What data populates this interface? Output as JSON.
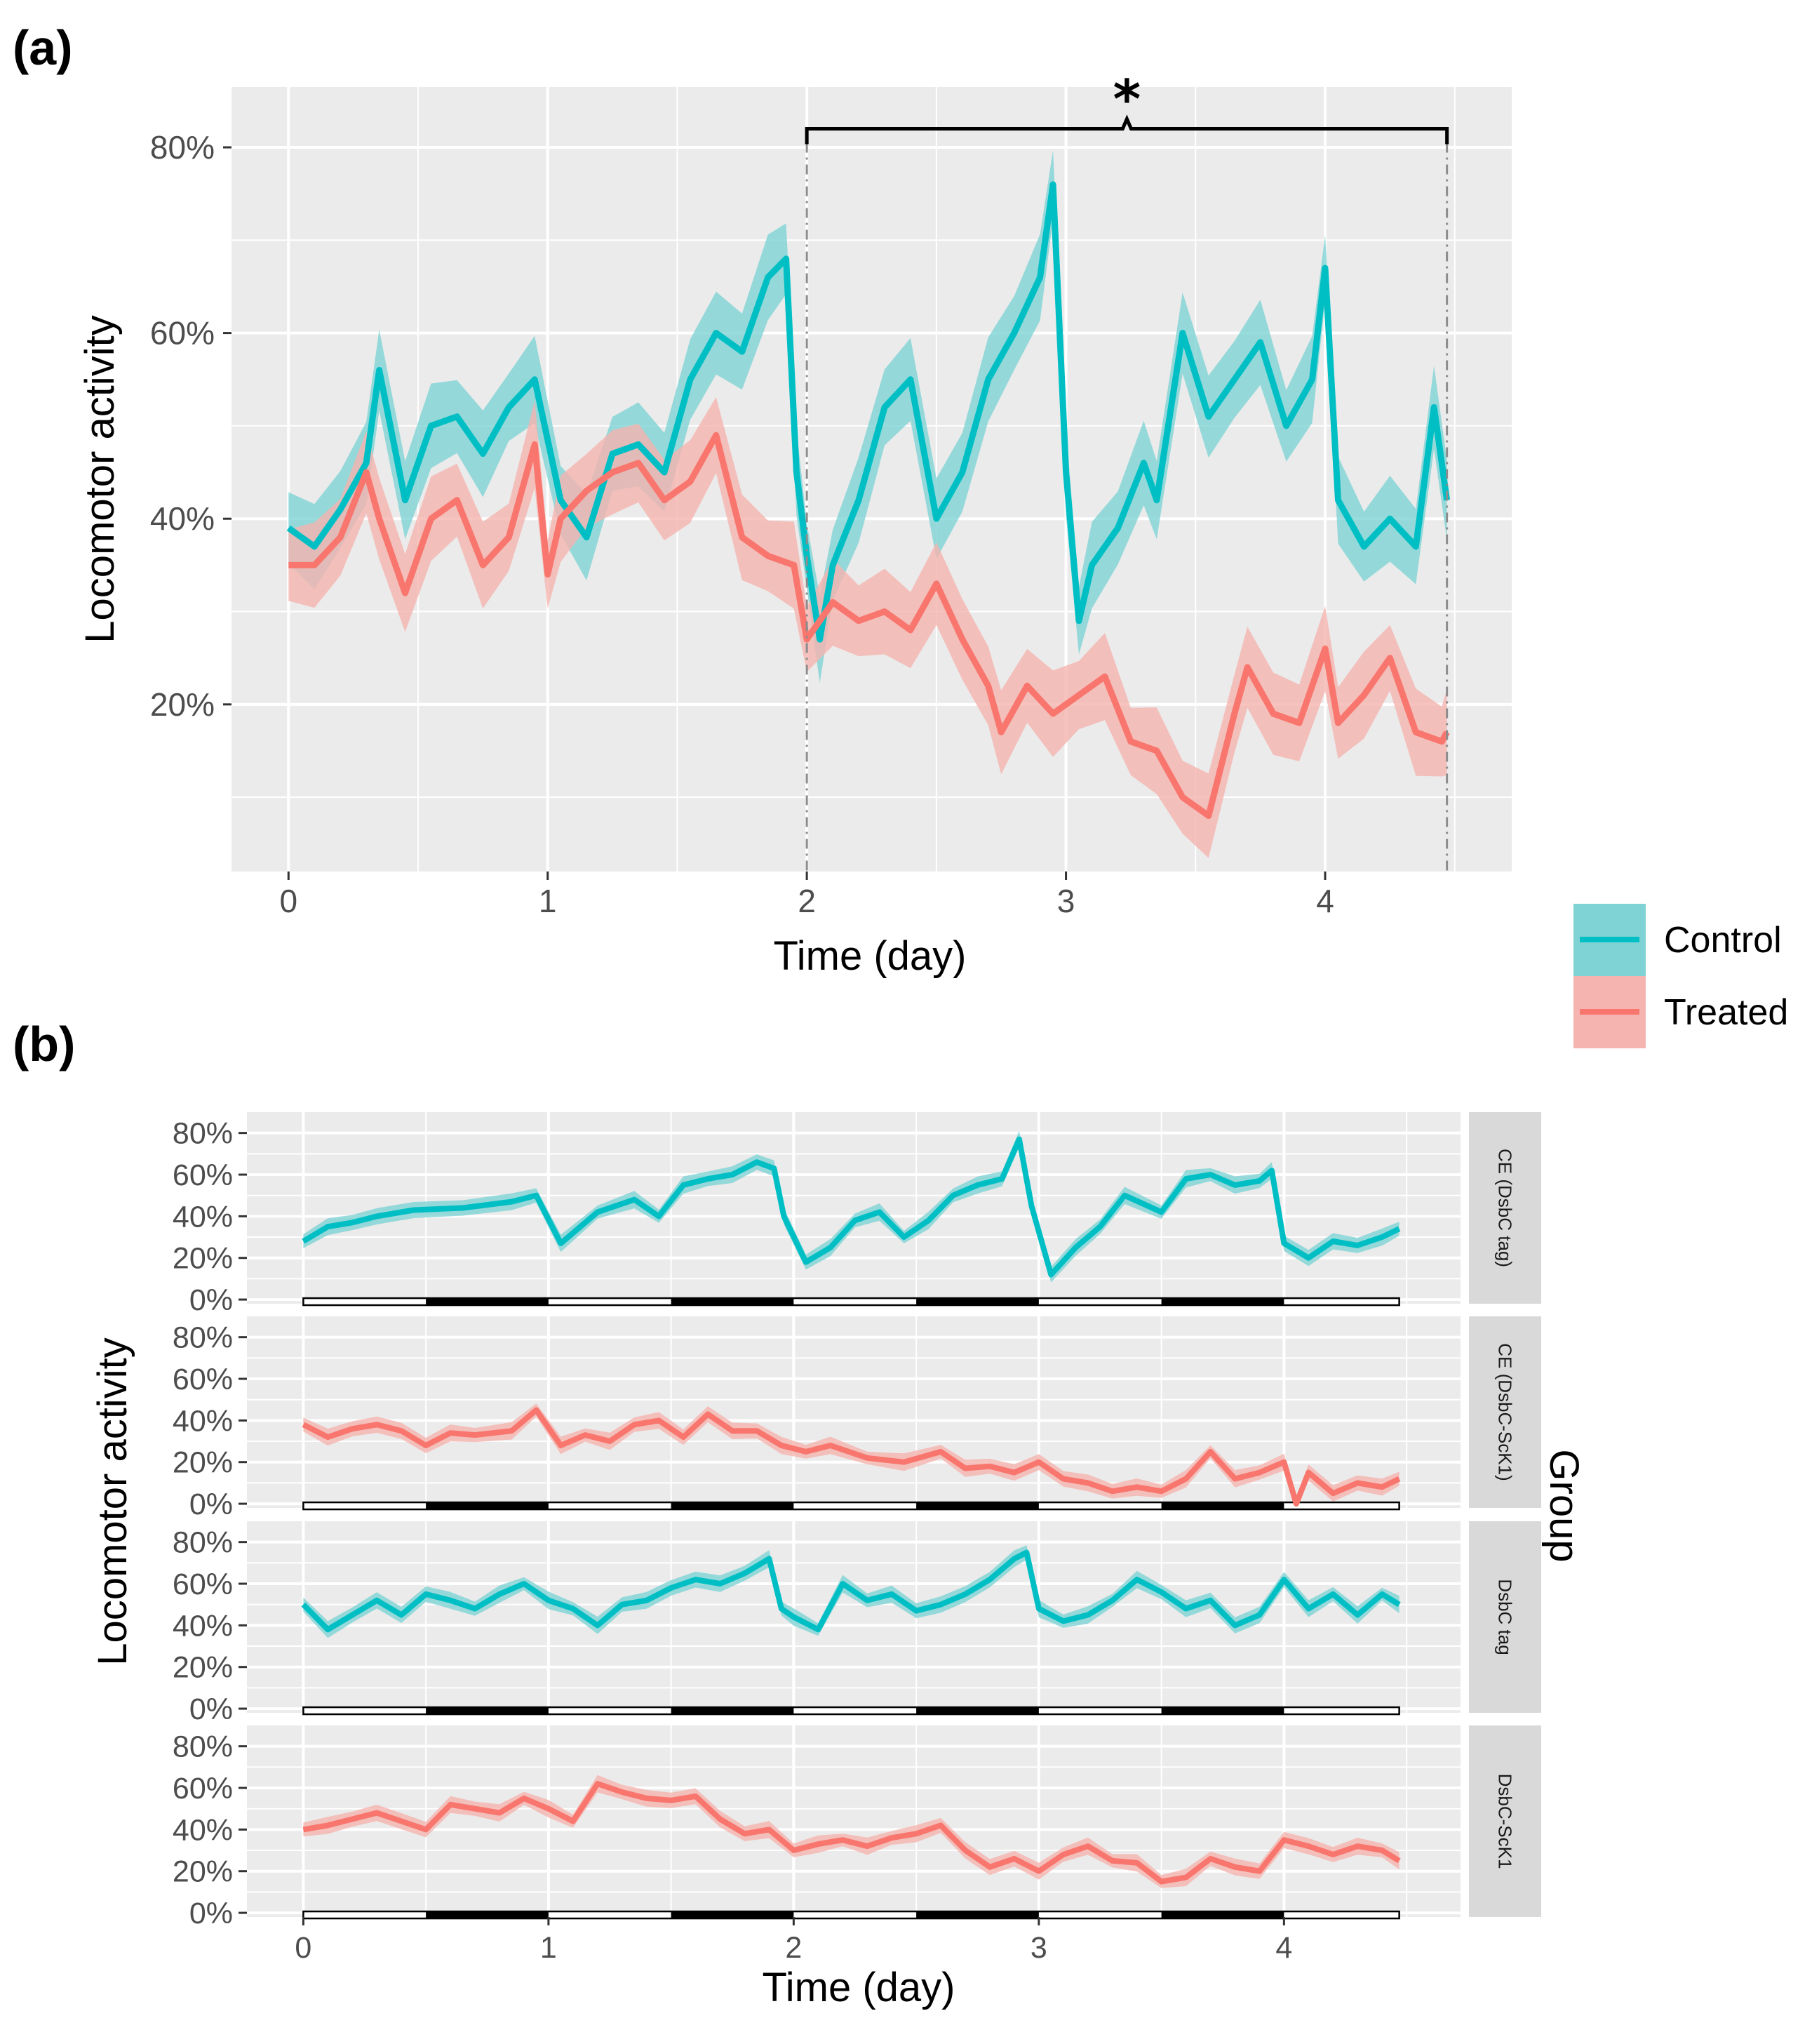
{
  "panel_a": {
    "tag": "(a)",
    "ylabel": "Locomotor activity",
    "xlabel": "Time (day)",
    "significance": "*",
    "yticks": [
      "20%",
      "40%",
      "60%",
      "80%"
    ],
    "xticks": [
      "0",
      "1",
      "2",
      "3",
      "4"
    ]
  },
  "panel_b": {
    "tag": "(b)",
    "ylabel": "Locomotor activity",
    "xlabel": "Time (day)",
    "group_label": "Group",
    "yticks": [
      "0%",
      "20%",
      "40%",
      "60%",
      "80%"
    ],
    "xticks": [
      "0",
      "1",
      "2",
      "3",
      "4"
    ],
    "facets": [
      "CE (DsbC tag)",
      "CE (DsbC-ScK1)",
      "DsbC tag",
      "DsbC-ScK1"
    ]
  },
  "legend": {
    "items": [
      {
        "label": "Control",
        "color": "#00bfc4",
        "fill": "#7fd3d5"
      },
      {
        "label": "Treated",
        "color": "#f8766d",
        "fill": "#f5b4af"
      }
    ]
  },
  "chart_data": [
    {
      "type": "line",
      "panel": "a",
      "title": "",
      "xlabel": "Time (day)",
      "ylabel": "Locomotor activity",
      "xlim": [
        -0.22,
        4.72
      ],
      "ylim": [
        0.02,
        0.865
      ],
      "xticks": [
        0,
        1,
        2,
        3,
        4
      ],
      "yticks": [
        0.2,
        0.4,
        0.6,
        0.8
      ],
      "annotation": {
        "text": "*",
        "x_from": 2,
        "x_to": 4.47,
        "y": 0.82
      },
      "series": [
        {
          "name": "Control",
          "x": [
            0,
            0.1,
            0.2,
            0.3,
            0.35,
            0.45,
            0.55,
            0.65,
            0.75,
            0.85,
            0.95,
            1.05,
            1.15,
            1.25,
            1.35,
            1.45,
            1.55,
            1.65,
            1.75,
            1.85,
            1.92,
            1.96,
            2.0,
            2.05,
            2.1,
            2.2,
            2.3,
            2.4,
            2.5,
            2.6,
            2.7,
            2.8,
            2.9,
            2.95,
            3.0,
            3.05,
            3.1,
            3.2,
            3.3,
            3.35,
            3.45,
            3.55,
            3.65,
            3.75,
            3.85,
            3.95,
            4.0,
            4.05,
            4.15,
            4.25,
            4.35,
            4.42,
            4.47
          ],
          "values": [
            0.39,
            0.37,
            0.41,
            0.46,
            0.56,
            0.42,
            0.5,
            0.51,
            0.47,
            0.52,
            0.55,
            0.42,
            0.38,
            0.47,
            0.48,
            0.45,
            0.55,
            0.6,
            0.58,
            0.66,
            0.68,
            0.45,
            0.36,
            0.27,
            0.35,
            0.42,
            0.52,
            0.55,
            0.4,
            0.45,
            0.55,
            0.6,
            0.66,
            0.76,
            0.45,
            0.29,
            0.35,
            0.39,
            0.46,
            0.42,
            0.6,
            0.51,
            0.55,
            0.59,
            0.5,
            0.55,
            0.67,
            0.42,
            0.37,
            0.4,
            0.37,
            0.52,
            0.42
          ]
        },
        {
          "name": "Treated",
          "x": [
            0,
            0.1,
            0.2,
            0.3,
            0.35,
            0.45,
            0.55,
            0.65,
            0.75,
            0.85,
            0.95,
            1.0,
            1.05,
            1.15,
            1.25,
            1.35,
            1.45,
            1.55,
            1.65,
            1.75,
            1.85,
            1.95,
            2.0,
            2.1,
            2.2,
            2.3,
            2.4,
            2.5,
            2.6,
            2.7,
            2.75,
            2.85,
            2.95,
            3.05,
            3.15,
            3.25,
            3.35,
            3.45,
            3.55,
            3.65,
            3.7,
            3.8,
            3.9,
            4.0,
            4.05,
            4.15,
            4.25,
            4.35,
            4.45,
            4.47
          ],
          "values": [
            0.35,
            0.35,
            0.38,
            0.45,
            0.4,
            0.32,
            0.4,
            0.42,
            0.35,
            0.38,
            0.48,
            0.34,
            0.4,
            0.43,
            0.45,
            0.46,
            0.42,
            0.44,
            0.49,
            0.38,
            0.36,
            0.35,
            0.27,
            0.31,
            0.29,
            0.3,
            0.28,
            0.33,
            0.27,
            0.22,
            0.17,
            0.22,
            0.19,
            0.21,
            0.23,
            0.16,
            0.15,
            0.1,
            0.08,
            0.19,
            0.24,
            0.19,
            0.18,
            0.26,
            0.18,
            0.21,
            0.25,
            0.17,
            0.16,
            0.17
          ]
        }
      ]
    },
    {
      "type": "line",
      "panel": "b",
      "xlabel": "Time (day)",
      "ylabel": "Locomotor activity",
      "xlim": [
        -0.23,
        4.72
      ],
      "ylim": [
        -0.02,
        0.9
      ],
      "xticks": [
        0,
        1,
        2,
        3,
        4
      ],
      "yticks": [
        0,
        0.2,
        0.4,
        0.6,
        0.8
      ],
      "facets": [
        {
          "label": "CE (DsbC tag)",
          "series": "Control",
          "x": [
            0,
            0.1,
            0.2,
            0.3,
            0.45,
            0.65,
            0.85,
            0.95,
            1.05,
            1.2,
            1.35,
            1.45,
            1.55,
            1.65,
            1.75,
            1.85,
            1.92,
            1.96,
            2.05,
            2.15,
            2.25,
            2.35,
            2.45,
            2.55,
            2.65,
            2.75,
            2.85,
            2.92,
            2.97,
            3.05,
            3.15,
            3.25,
            3.35,
            3.5,
            3.6,
            3.7,
            3.8,
            3.9,
            3.95,
            4.0,
            4.1,
            4.2,
            4.3,
            4.4,
            4.47
          ],
          "values": [
            0.28,
            0.35,
            0.37,
            0.4,
            0.43,
            0.44,
            0.47,
            0.5,
            0.27,
            0.42,
            0.48,
            0.4,
            0.55,
            0.58,
            0.6,
            0.66,
            0.63,
            0.4,
            0.18,
            0.25,
            0.38,
            0.42,
            0.3,
            0.38,
            0.5,
            0.55,
            0.58,
            0.77,
            0.45,
            0.12,
            0.25,
            0.35,
            0.5,
            0.42,
            0.58,
            0.6,
            0.55,
            0.57,
            0.62,
            0.27,
            0.2,
            0.28,
            0.26,
            0.3,
            0.34
          ]
        },
        {
          "label": "CE (DsbC-ScK1)",
          "series": "Treated",
          "x": [
            0,
            0.1,
            0.2,
            0.3,
            0.4,
            0.5,
            0.6,
            0.7,
            0.85,
            0.95,
            1.05,
            1.15,
            1.25,
            1.35,
            1.45,
            1.55,
            1.65,
            1.75,
            1.85,
            1.95,
            2.05,
            2.15,
            2.3,
            2.45,
            2.6,
            2.7,
            2.8,
            2.9,
            3.0,
            3.1,
            3.2,
            3.3,
            3.4,
            3.5,
            3.6,
            3.7,
            3.8,
            3.9,
            4.0,
            4.05,
            4.1,
            4.2,
            4.3,
            4.4,
            4.47
          ],
          "values": [
            0.38,
            0.32,
            0.36,
            0.38,
            0.35,
            0.28,
            0.34,
            0.33,
            0.35,
            0.45,
            0.28,
            0.33,
            0.3,
            0.38,
            0.4,
            0.32,
            0.43,
            0.35,
            0.35,
            0.28,
            0.25,
            0.28,
            0.22,
            0.2,
            0.25,
            0.17,
            0.18,
            0.15,
            0.2,
            0.12,
            0.1,
            0.06,
            0.08,
            0.06,
            0.12,
            0.25,
            0.12,
            0.15,
            0.2,
            0.0,
            0.15,
            0.05,
            0.1,
            0.08,
            0.12
          ]
        },
        {
          "label": "DsbC tag",
          "series": "Control",
          "x": [
            0,
            0.1,
            0.2,
            0.3,
            0.4,
            0.5,
            0.6,
            0.7,
            0.8,
            0.9,
            1.0,
            1.1,
            1.2,
            1.3,
            1.4,
            1.5,
            1.6,
            1.7,
            1.8,
            1.9,
            1.95,
            2.0,
            2.1,
            2.2,
            2.3,
            2.4,
            2.5,
            2.6,
            2.7,
            2.8,
            2.9,
            2.95,
            3.0,
            3.1,
            3.2,
            3.3,
            3.4,
            3.5,
            3.6,
            3.7,
            3.8,
            3.9,
            4.0,
            4.1,
            4.2,
            4.3,
            4.4,
            4.47
          ],
          "values": [
            0.5,
            0.38,
            0.45,
            0.52,
            0.45,
            0.55,
            0.52,
            0.48,
            0.55,
            0.6,
            0.52,
            0.48,
            0.4,
            0.5,
            0.52,
            0.58,
            0.62,
            0.6,
            0.65,
            0.72,
            0.48,
            0.44,
            0.38,
            0.6,
            0.52,
            0.55,
            0.47,
            0.5,
            0.55,
            0.62,
            0.72,
            0.75,
            0.48,
            0.42,
            0.45,
            0.52,
            0.62,
            0.56,
            0.48,
            0.52,
            0.4,
            0.45,
            0.62,
            0.48,
            0.55,
            0.45,
            0.55,
            0.5
          ]
        },
        {
          "label": "DsbC-ScK1",
          "series": "Treated",
          "x": [
            0,
            0.1,
            0.2,
            0.3,
            0.4,
            0.5,
            0.6,
            0.7,
            0.8,
            0.9,
            1.0,
            1.1,
            1.2,
            1.3,
            1.4,
            1.5,
            1.6,
            1.7,
            1.8,
            1.9,
            2.0,
            2.1,
            2.2,
            2.3,
            2.4,
            2.5,
            2.6,
            2.7,
            2.8,
            2.9,
            3.0,
            3.1,
            3.2,
            3.3,
            3.4,
            3.5,
            3.6,
            3.7,
            3.8,
            3.9,
            4.0,
            4.1,
            4.2,
            4.3,
            4.4,
            4.47
          ],
          "values": [
            0.4,
            0.42,
            0.45,
            0.48,
            0.44,
            0.4,
            0.52,
            0.5,
            0.48,
            0.55,
            0.5,
            0.44,
            0.62,
            0.58,
            0.55,
            0.54,
            0.56,
            0.45,
            0.38,
            0.4,
            0.3,
            0.33,
            0.35,
            0.32,
            0.36,
            0.38,
            0.42,
            0.3,
            0.22,
            0.26,
            0.2,
            0.28,
            0.32,
            0.25,
            0.24,
            0.15,
            0.17,
            0.26,
            0.22,
            0.2,
            0.35,
            0.32,
            0.28,
            0.32,
            0.3,
            0.25
          ]
        }
      ]
    }
  ]
}
